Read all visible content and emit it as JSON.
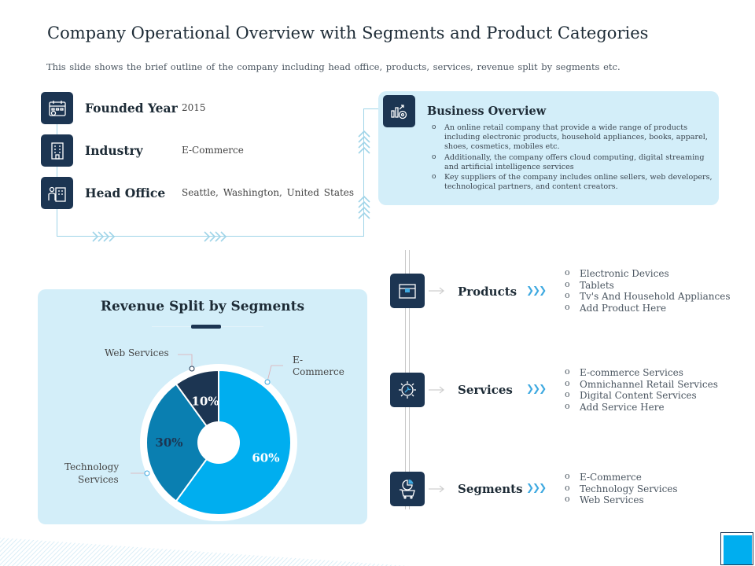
{
  "header": {
    "title": "Company Operational Overview with Segments and Product Categories",
    "subtitle": "This slide shows the brief outline of the company including head office, products, services, revenue split by segments etc."
  },
  "company_info": [
    {
      "label": "Founded Year",
      "value": "2015",
      "icon": "calendar-icon"
    },
    {
      "label": "Industry",
      "value": "E-Commerce",
      "icon": "building-icon"
    },
    {
      "label": "Head Office",
      "value": "Seattle, Washington, United States",
      "icon": "office-person-icon"
    }
  ],
  "business_overview": {
    "title": "Business Overview",
    "icon": "analytics-icon",
    "points": [
      "An online retail company that provide a wide range of products including electronic products, household appliances, books, apparel, shoes, cosmetics, mobiles etc.",
      "Additionally, the company offers cloud computing, digital streaming and artificial intelligence services",
      "Key suppliers of the company includes online sellers, web developers, technological partners, and content creators."
    ]
  },
  "revenue_split": {
    "title": "Revenue Split by Segments",
    "callouts": {
      "web": "Web Services",
      "ecommerce_line1": "E-",
      "ecommerce_line2": "Commerce",
      "tech_line1": "Technology",
      "tech_line2": "Services"
    }
  },
  "chart_data": {
    "type": "pie",
    "title": "Revenue Split by Segments",
    "categories": [
      "E-Commerce",
      "Technology Services",
      "Web Services"
    ],
    "values": [
      60,
      30,
      10
    ],
    "labels": [
      "60%",
      "30%",
      "10%"
    ],
    "colors": [
      "#00aeef",
      "#0a7fb1",
      "#1c3552"
    ]
  },
  "segments": [
    {
      "label": "Products",
      "icon": "box-icon",
      "items": [
        "Electronic Devices",
        "Tablets",
        "Tv's And Household Appliances",
        "Add Product Here"
      ]
    },
    {
      "label": "Services",
      "icon": "gear-wrench-icon",
      "items": [
        "E-commerce Services",
        "Omnichannel Retail Services",
        "Digital Content Services",
        "Add Service Here"
      ]
    },
    {
      "label": "Segments",
      "icon": "segment-cart-icon",
      "items": [
        "E-Commerce",
        "Technology Services",
        "Web Services"
      ]
    }
  ],
  "colors": {
    "navy": "#1c3552",
    "light_panel": "#d3eef9",
    "accent": "#3ea9e0",
    "pie_primary": "#00aeef",
    "pie_secondary": "#0a7fb1"
  }
}
